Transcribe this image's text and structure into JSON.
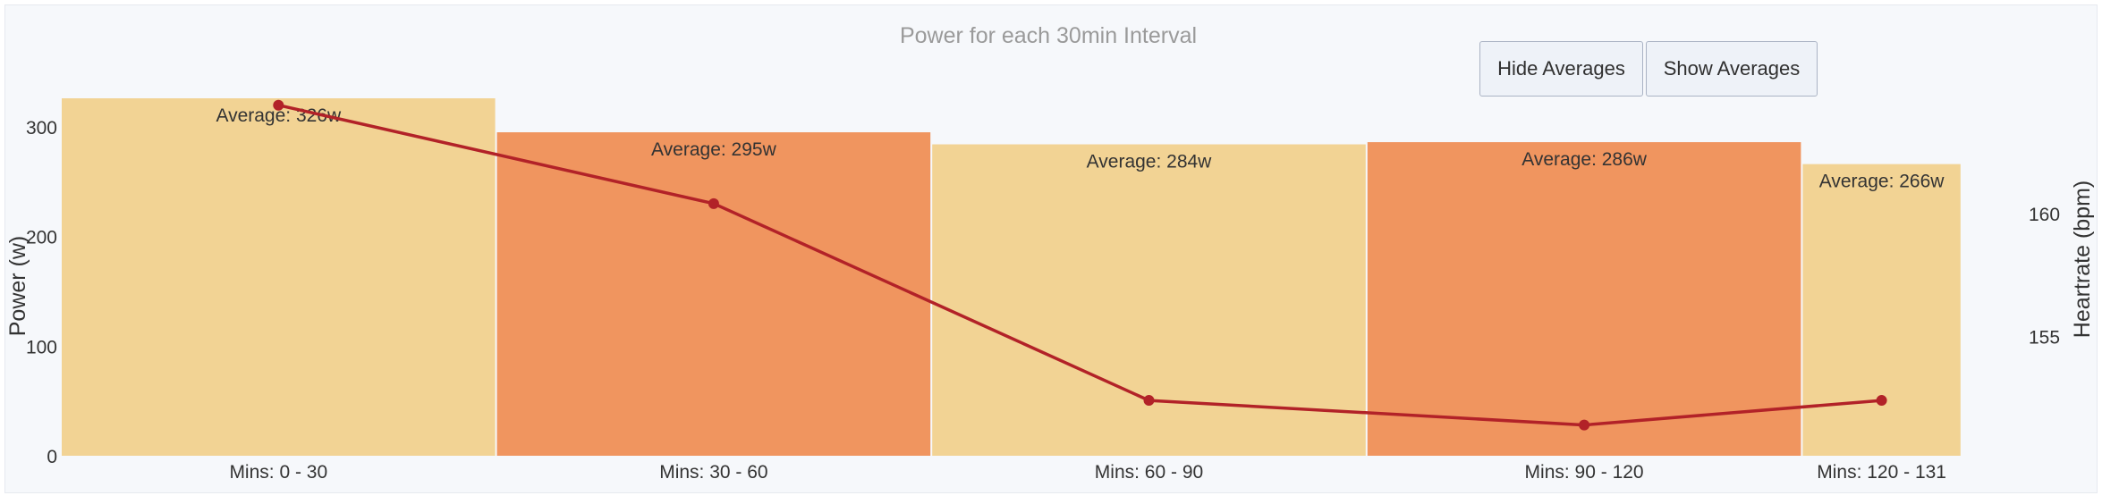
{
  "buttons": {
    "hide_label": "Hide Averages",
    "show_label": "Show Averages"
  },
  "colors": {
    "bar_light": "#f2d394",
    "bar_dark": "#f0955f",
    "line": "#b22228"
  },
  "chart_data": {
    "type": "bar",
    "title": "Power for each 30min Interval",
    "xlabel": "",
    "ylabel": "Power (w)",
    "y2label": "Heartrate (bpm)",
    "grid": false,
    "categories": [
      "Mins: 0 - 30",
      "Mins: 30 - 60",
      "Mins: 60 - 90",
      "Mins: 90 - 120",
      "Mins: 120 - 131"
    ],
    "bar_widths_minutes": [
      30,
      30,
      30,
      30,
      11
    ],
    "ylim": [
      0,
      326
    ],
    "yticks": [
      0,
      100,
      200,
      300
    ],
    "y2lim": [
      150.15,
      164.68
    ],
    "y2ticks": [
      155,
      160
    ],
    "series": [
      {
        "name": "Power",
        "type": "bar",
        "values": [
          326,
          295,
          284,
          286,
          266
        ],
        "labels": [
          "Average: 326w",
          "Average: 295w",
          "Average: 284w",
          "Average: 286w",
          "Average: 266w"
        ]
      },
      {
        "name": "Heartrate",
        "type": "line",
        "axis": "right",
        "x_minutes": [
          15,
          45,
          75,
          105,
          125.5
        ],
        "values": [
          164.4,
          160.4,
          152.4,
          151.4,
          152.4
        ]
      }
    ]
  }
}
